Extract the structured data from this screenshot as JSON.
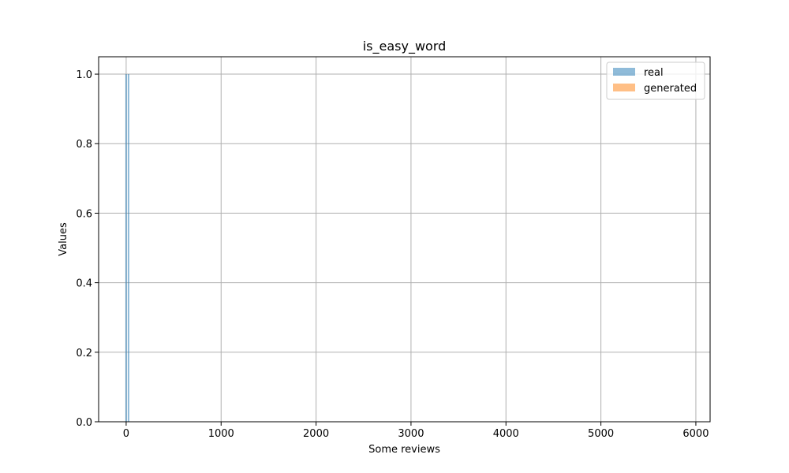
{
  "chart_data": {
    "type": "bar",
    "title": "is_easy_word",
    "xlabel": "Some reviews",
    "ylabel": "Values",
    "xlim": [
      -290,
      6150
    ],
    "ylim": [
      0,
      1.05
    ],
    "xticks": [
      0,
      1000,
      2000,
      3000,
      4000,
      5000,
      6000
    ],
    "yticks": [
      0.0,
      0.2,
      0.4,
      0.6,
      0.8,
      1.0
    ],
    "xtick_labels": [
      "0",
      "1000",
      "2000",
      "3000",
      "4000",
      "5000",
      "6000"
    ],
    "ytick_labels": [
      "0.0",
      "0.2",
      "0.4",
      "0.6",
      "0.8",
      "1.0"
    ],
    "grid": true,
    "legend_position": "top-right",
    "series": [
      {
        "name": "real",
        "color": "#1f77b4",
        "alpha": 0.5,
        "bars": [
          {
            "x": 0,
            "value": 1.0
          },
          {
            "x": 25,
            "value": 1.0
          }
        ]
      },
      {
        "name": "generated",
        "color": "#ff7f0e",
        "alpha": 0.5,
        "bars": []
      }
    ]
  }
}
